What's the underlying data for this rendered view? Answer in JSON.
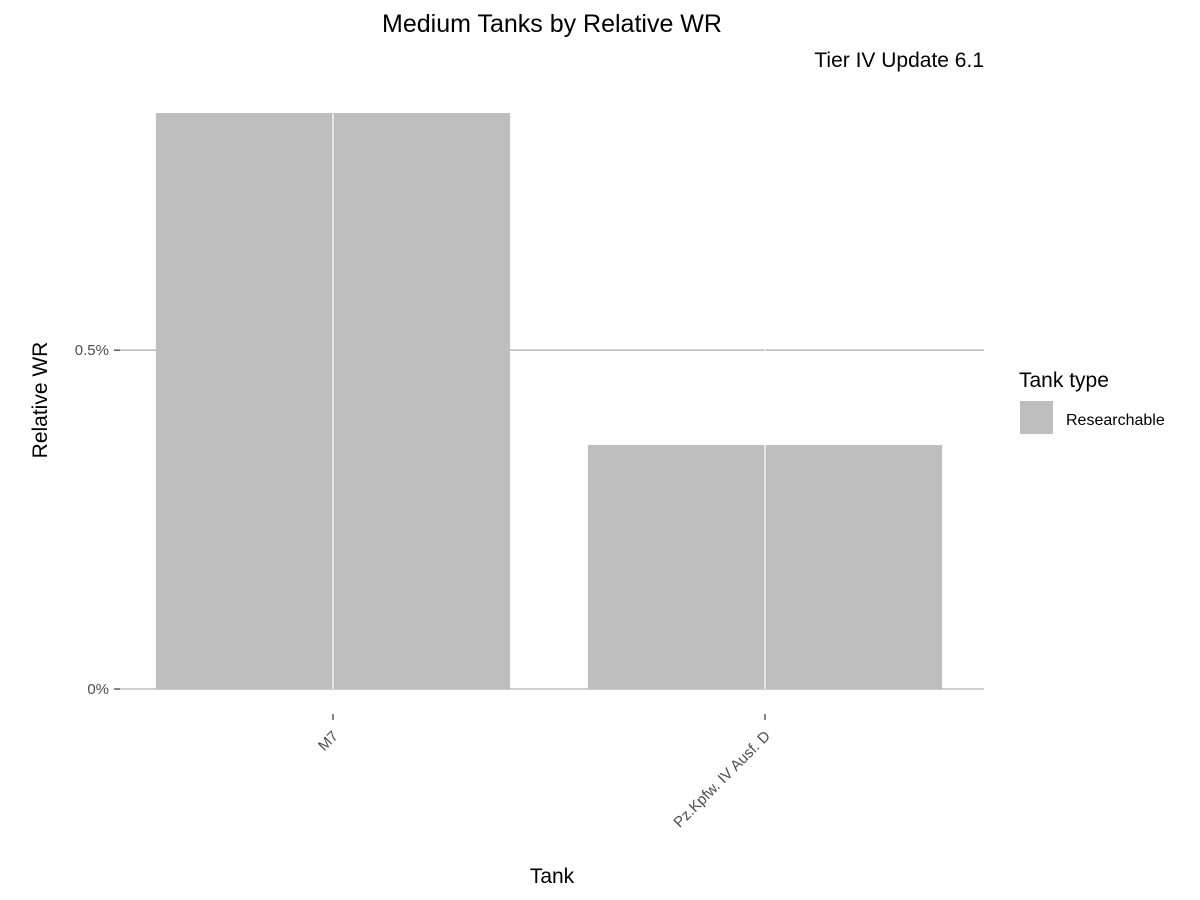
{
  "chart_data": {
    "type": "bar",
    "title": "Medium Tanks by Relative WR",
    "subtitle": "Tier IV Update 6.1",
    "xlabel": "Tank",
    "ylabel": "Relative WR",
    "categories": [
      "M7",
      "Pz.Kpfw. IV Ausf. D"
    ],
    "series": [
      {
        "name": "Researchable",
        "values": [
          0.0085,
          0.0036
        ]
      }
    ],
    "ylim": [
      0,
      0.0085
    ],
    "yticks": [
      0,
      0.005
    ],
    "ytick_labels": [
      "0%",
      "0.5%"
    ],
    "grid": true,
    "legend": {
      "title": "Tank type",
      "position": "right",
      "entries": [
        "Researchable"
      ]
    },
    "colors": {
      "bar": "#bebebe",
      "grid": "#bebebe",
      "background": "#ffffff"
    }
  }
}
